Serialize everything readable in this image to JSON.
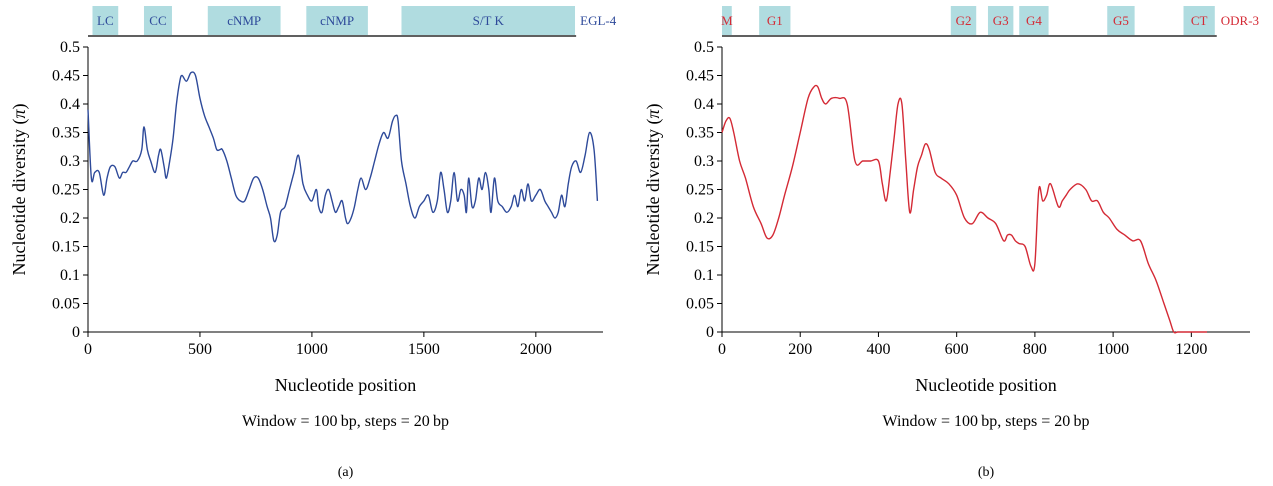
{
  "colors": {
    "domain_box": "#b0dce0",
    "axis": "#000000",
    "panel_a_accent": "#2e4a9a",
    "panel_b_accent": "#d42a35",
    "text": "#000000"
  },
  "chart_data": [
    {
      "type": "line",
      "panel_label": "(a)",
      "gene_label": "EGL-4",
      "xlabel": "Nucleotide position",
      "ylabel": "Nucleotide diversity (π)",
      "ylabel_parts": [
        "Nucleotide diversity (",
        "π",
        ")"
      ],
      "caption": "Window = 100 bp, steps = 20 bp",
      "xlim": [
        0,
        2300
      ],
      "ylim": [
        0,
        0.5
      ],
      "xticks": [
        0,
        500,
        1000,
        1500,
        2000
      ],
      "xtick_labels": [
        "0",
        "500",
        "1000",
        "1500",
        "2000"
      ],
      "yticks": [
        0,
        0.05,
        0.1,
        0.15,
        0.2,
        0.25,
        0.3,
        0.35,
        0.4,
        0.45,
        0.5
      ],
      "ytick_labels": [
        "0",
        "0.05",
        "0.1",
        "0.15",
        "0.2",
        "0.25",
        "0.3",
        "0.35",
        "0.4",
        "0.45",
        "0.5"
      ],
      "domains": [
        {
          "label": "LC",
          "start": 20,
          "end": 135
        },
        {
          "label": "CC",
          "start": 250,
          "end": 375
        },
        {
          "label": "cNMP",
          "start": 535,
          "end": 860
        },
        {
          "label": "cNMP",
          "start": 975,
          "end": 1250
        },
        {
          "label": "S/T K",
          "start": 1400,
          "end": 2175
        }
      ],
      "domain_bar_range": [
        0,
        2180
      ],
      "series": [
        {
          "x": [
            0,
            15,
            30,
            50,
            70,
            85,
            100,
            120,
            140,
            155,
            170,
            185,
            200,
            220,
            240,
            250,
            265,
            280,
            300,
            315,
            325,
            340,
            350,
            365,
            380,
            395,
            410,
            420,
            440,
            460,
            480,
            500,
            520,
            540,
            560,
            575,
            590,
            600,
            620,
            640,
            660,
            680,
            700,
            720,
            740,
            760,
            780,
            800,
            815,
            830,
            845,
            860,
            880,
            900,
            920,
            940,
            960,
            980,
            1000,
            1020,
            1030,
            1045,
            1060,
            1075,
            1090,
            1105,
            1120,
            1135,
            1150,
            1160,
            1175,
            1190,
            1205,
            1220,
            1240,
            1260,
            1280,
            1300,
            1320,
            1340,
            1360,
            1375,
            1385,
            1400,
            1420,
            1440,
            1460,
            1480,
            1500,
            1520,
            1540,
            1560,
            1575,
            1590,
            1605,
            1620,
            1635,
            1650,
            1665,
            1680,
            1690,
            1700,
            1715,
            1730,
            1745,
            1760,
            1775,
            1790,
            1800,
            1815,
            1830,
            1850,
            1870,
            1890,
            1905,
            1920,
            1935,
            1950,
            1965,
            1980,
            2000,
            2020,
            2040,
            2055,
            2070,
            2085,
            2100,
            2115,
            2130,
            2145,
            2160,
            2180,
            2200,
            2220,
            2240,
            2260,
            2275
          ],
          "y": [
            0.39,
            0.27,
            0.28,
            0.28,
            0.24,
            0.27,
            0.29,
            0.29,
            0.27,
            0.28,
            0.28,
            0.29,
            0.3,
            0.3,
            0.32,
            0.36,
            0.32,
            0.3,
            0.28,
            0.31,
            0.32,
            0.29,
            0.27,
            0.3,
            0.34,
            0.4,
            0.44,
            0.45,
            0.44,
            0.455,
            0.45,
            0.41,
            0.38,
            0.36,
            0.34,
            0.32,
            0.32,
            0.32,
            0.3,
            0.27,
            0.24,
            0.23,
            0.23,
            0.25,
            0.27,
            0.27,
            0.25,
            0.22,
            0.2,
            0.16,
            0.17,
            0.21,
            0.22,
            0.25,
            0.28,
            0.31,
            0.26,
            0.24,
            0.23,
            0.25,
            0.22,
            0.21,
            0.24,
            0.25,
            0.23,
            0.21,
            0.22,
            0.23,
            0.2,
            0.19,
            0.2,
            0.22,
            0.25,
            0.27,
            0.25,
            0.27,
            0.3,
            0.33,
            0.35,
            0.34,
            0.37,
            0.38,
            0.37,
            0.3,
            0.26,
            0.22,
            0.2,
            0.22,
            0.23,
            0.24,
            0.21,
            0.23,
            0.28,
            0.25,
            0.21,
            0.23,
            0.28,
            0.23,
            0.25,
            0.24,
            0.21,
            0.27,
            0.22,
            0.23,
            0.27,
            0.25,
            0.28,
            0.25,
            0.21,
            0.27,
            0.23,
            0.22,
            0.21,
            0.22,
            0.24,
            0.22,
            0.25,
            0.23,
            0.26,
            0.23,
            0.24,
            0.25,
            0.23,
            0.22,
            0.21,
            0.2,
            0.21,
            0.24,
            0.22,
            0.26,
            0.29,
            0.3,
            0.28,
            0.31,
            0.35,
            0.32,
            0.23
          ]
        }
      ]
    },
    {
      "type": "line",
      "panel_label": "(b)",
      "gene_label": "ODR-3",
      "xlabel": "Nucleotide position",
      "ylabel": "Nucleotide diversity (π)",
      "ylabel_parts": [
        "Nucleotide diversity (",
        "π",
        ")"
      ],
      "caption": "Window = 100 bp, steps = 20 bp",
      "xlim": [
        0,
        1350
      ],
      "ylim": [
        0,
        0.5
      ],
      "xticks": [
        0,
        200,
        400,
        600,
        800,
        1000,
        1200
      ],
      "xtick_labels": [
        "0",
        "200",
        "400",
        "600",
        "800",
        "1000",
        "1200"
      ],
      "yticks": [
        0,
        0.05,
        0.1,
        0.15,
        0.2,
        0.25,
        0.3,
        0.35,
        0.4,
        0.45,
        0.5
      ],
      "ytick_labels": [
        "0",
        "0.05",
        "0.1",
        "0.15",
        "0.2",
        "0.25",
        "0.3",
        "0.35",
        "0.4",
        "0.45",
        "0.5"
      ],
      "domains": [
        {
          "label": "M",
          "start": 0,
          "end": 25
        },
        {
          "label": "G1",
          "start": 95,
          "end": 175
        },
        {
          "label": "G2",
          "start": 585,
          "end": 650
        },
        {
          "label": "G3",
          "start": 680,
          "end": 745
        },
        {
          "label": "G4",
          "start": 760,
          "end": 835
        },
        {
          "label": "G5",
          "start": 985,
          "end": 1055
        },
        {
          "label": "CT",
          "start": 1180,
          "end": 1260
        }
      ],
      "domain_bar_range": [
        0,
        1265
      ],
      "series": [
        {
          "x": [
            0,
            10,
            20,
            30,
            45,
            60,
            80,
            100,
            115,
            130,
            145,
            160,
            180,
            200,
            220,
            235,
            245,
            255,
            265,
            280,
            300,
            320,
            340,
            360,
            380,
            400,
            410,
            420,
            430,
            440,
            450,
            460,
            470,
            480,
            490,
            500,
            510,
            520,
            530,
            545,
            560,
            580,
            600,
            620,
            640,
            660,
            680,
            700,
            720,
            730,
            740,
            750,
            760,
            775,
            790,
            800,
            810,
            820,
            830,
            840,
            860,
            870,
            880,
            890,
            910,
            930,
            945,
            960,
            975,
            990,
            1010,
            1030,
            1050,
            1070,
            1090,
            1110,
            1130,
            1145,
            1155,
            1165,
            1175,
            1200,
            1240
          ],
          "y": [
            0.35,
            0.37,
            0.375,
            0.35,
            0.3,
            0.27,
            0.22,
            0.19,
            0.165,
            0.17,
            0.2,
            0.24,
            0.29,
            0.35,
            0.41,
            0.43,
            0.43,
            0.41,
            0.4,
            0.41,
            0.41,
            0.4,
            0.3,
            0.3,
            0.3,
            0.3,
            0.26,
            0.23,
            0.28,
            0.34,
            0.4,
            0.4,
            0.3,
            0.21,
            0.25,
            0.29,
            0.31,
            0.33,
            0.32,
            0.28,
            0.27,
            0.26,
            0.24,
            0.2,
            0.19,
            0.21,
            0.2,
            0.19,
            0.16,
            0.17,
            0.17,
            0.16,
            0.155,
            0.15,
            0.115,
            0.12,
            0.25,
            0.23,
            0.24,
            0.26,
            0.22,
            0.23,
            0.24,
            0.25,
            0.26,
            0.25,
            0.23,
            0.23,
            0.21,
            0.2,
            0.18,
            0.17,
            0.16,
            0.16,
            0.12,
            0.09,
            0.05,
            0.02,
            0.0,
            0.0,
            0.0,
            0.0,
            0.0
          ]
        }
      ]
    }
  ]
}
